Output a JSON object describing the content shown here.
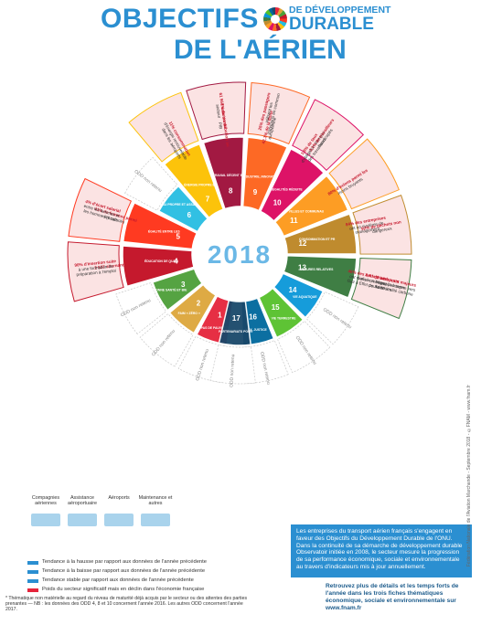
{
  "title": {
    "line1": "OBJECTIFS",
    "line2": "DE L'AÉRIEN",
    "sdg_small": "DE DÉVELOPPEMENT",
    "sdg_big": "DURABLE"
  },
  "year": "2018",
  "odd_not_retained": "ODD non retenu",
  "goals": [
    {
      "n": "1",
      "name": "PAS DE PAUVRETÉ",
      "color": "#e5243b",
      "retained": false
    },
    {
      "n": "2",
      "name": "FAIM « ZÉRO »",
      "color": "#dda63a",
      "retained": false
    },
    {
      "n": "3",
      "name": "BONNE SANTÉ ET BIEN-ÊTRE",
      "color": "#4c9f38",
      "retained": false
    },
    {
      "n": "4",
      "name": "ÉDUCATION DE QUALITÉ",
      "color": "#c5192d",
      "retained": true
    },
    {
      "n": "5",
      "name": "ÉGALITÉ ENTRE LES SEXES",
      "color": "#ff3a21",
      "retained": true
    },
    {
      "n": "6",
      "name": "EAU PROPRE ET ASSAINISSEMENT",
      "color": "#26bde2",
      "retained": false
    },
    {
      "n": "7",
      "name": "ÉNERGIE PROPRE ET D'UN COÛT ABORDABLE",
      "color": "#fcc30b",
      "retained": true
    },
    {
      "n": "8",
      "name": "TRAVAIL DÉCENT ET CROISSANCE ÉCONOMIQUE",
      "color": "#a21942",
      "retained": true
    },
    {
      "n": "9",
      "name": "INDUSTRIE, INNOVATION ET INFRASTRUCTURE",
      "color": "#fd6925",
      "retained": true
    },
    {
      "n": "10",
      "name": "INÉGALITÉS RÉDUITES",
      "color": "#dd1367",
      "retained": true
    },
    {
      "n": "11",
      "name": "VILLES ET COMMUNAUTÉS DURABLES",
      "color": "#fd9d24",
      "retained": true
    },
    {
      "n": "12",
      "name": "CONSOMMATION ET PRODUCTION RESPONSABLES",
      "color": "#bf8b2e",
      "retained": true
    },
    {
      "n": "13",
      "name": "MESURES RELATIVES À LA LUTTE CONTRE LES CHANGEMENTS CLIMATIQUES",
      "color": "#3f7e44",
      "retained": true
    },
    {
      "n": "14",
      "name": "VIE AQUATIQUE",
      "color": "#0a97d9",
      "retained": false
    },
    {
      "n": "15",
      "name": "VIE TERRESTRE",
      "color": "#56c02b",
      "retained": false
    },
    {
      "n": "16",
      "name": "PAIX, JUSTICE",
      "color": "#00689d",
      "retained": false
    },
    {
      "n": "17",
      "name": "PARTENARIATS POUR LA RÉALISATION DES OBJECTIFS",
      "color": "#19486a",
      "retained": false
    }
  ],
  "callouts": {
    "g4_a": "2 537 alternants",
    "g4_b": "90% d'insertion suite à une formation de préparation à l'emploi",
    "g5_a": "41% de femmes parmi les salariés",
    "g5_b": "4% d'écart salarial entre les femmes et les hommes (écart national : 15%)",
    "g7": "11% consommation d'énergie renouvelable dans les aéroports",
    "g8_a": "1% de contribution au PIB",
    "g8_b": "61 568 salariés du secteur",
    "g9_a": "42,1% de la flotte européenne",
    "g9_b": "25% des passagers utilisent les transports en commun pour accéder aux aéroports",
    "g10_a": "3,8% de taux d'obligation d'emploi des travailleurs handicapés",
    "g10_b": "3,1% de travailleurs handicapés",
    "g11": "80% d'avions parmi les moins bruyants",
    "g12_a": "84% des entreprises ont un système de management environnemental et/ou sociétal",
    "g12_b": "92% de déchets non dangereux",
    "g13_a": "46% des entreprises ont réalisé un bilan Gaz à Effet de Serre",
    "g13_b": "3,4 l de carburant consommés par passager pour 100 km",
    "g13_c": "9 aéroports majeurs engagés à terme vers la neutralité carbone"
  },
  "legend": {
    "cols": [
      "Compagnies aériennes",
      "Assistance aéroportuaire",
      "Aéroports",
      "Maintenance et autres"
    ],
    "rows": [
      "Tendance à la hausse par rapport aux données de l'année précédente",
      "Tendance à la baisse par rapport aux données de l'année précédente",
      "Tendance stable par rapport aux données de l'année précédente",
      "Poids du secteur significatif mais en déclin dans l'économie française"
    ]
  },
  "footnote": "* Thématique non matérielle au regard du niveau de maturité déjà acquis par le secteur ou des attentes des parties prenantes — NB : les données des ODD 4, 8 et 10 concernent l'année 2016. Les autres ODD concernent l'année 2017.",
  "info_box": "Les entreprises du transport aérien français s'engagent en faveur des Objectifs du Développement Durable de l'ONU. Dans la continuité de sa démarche de développement durable Observatoir initiée en 2008, le secteur mesure la progression de sa performance économique, sociale et environnementale au travers d'indicateurs mis à jour annuellement.",
  "more_info": "Retrouvez plus de détails et les temps forts de l'année dans les trois fiches thématiques économique, sociale et environnementale sur www.fnam.fr",
  "credit": "Fédération Nationale de l'Aviation Marchande - Septembre 2018 - ©FNAM - www.fnam.fr",
  "colors": {
    "brand": "#2b8fd1",
    "year": "#6bb8e6",
    "callout_bg": "#fbe3e3"
  }
}
